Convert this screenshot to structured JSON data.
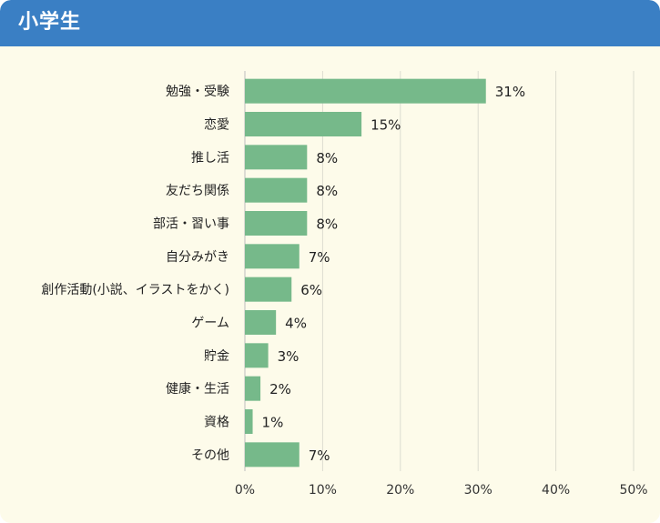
{
  "header": {
    "title": "小学生",
    "background_color": "#3a7fc4"
  },
  "chart_data": {
    "type": "bar",
    "orientation": "horizontal",
    "title": "小学生",
    "categories": [
      "勉強・受験",
      "恋愛",
      "推し活",
      "友だち関係",
      "部活・習い事",
      "自分みがき",
      "創作活動(小説、イラストをかく)",
      "ゲーム",
      "貯金",
      "健康・生活",
      "資格",
      "その他"
    ],
    "values": [
      31,
      15,
      8,
      8,
      8,
      7,
      6,
      4,
      3,
      2,
      1,
      7
    ],
    "value_labels": [
      "31%",
      "15%",
      "8%",
      "8%",
      "8%",
      "7%",
      "6%",
      "4%",
      "3%",
      "2%",
      "1%",
      "7%"
    ],
    "xlim": [
      0,
      50
    ],
    "x_ticks": [
      0,
      10,
      20,
      30,
      40,
      50
    ],
    "x_tick_labels": [
      "0%",
      "10%",
      "20%",
      "30%",
      "40%",
      "50%"
    ],
    "grid": "vertical",
    "bar_color": "#76b98a",
    "background_color": "#fdfbea"
  }
}
